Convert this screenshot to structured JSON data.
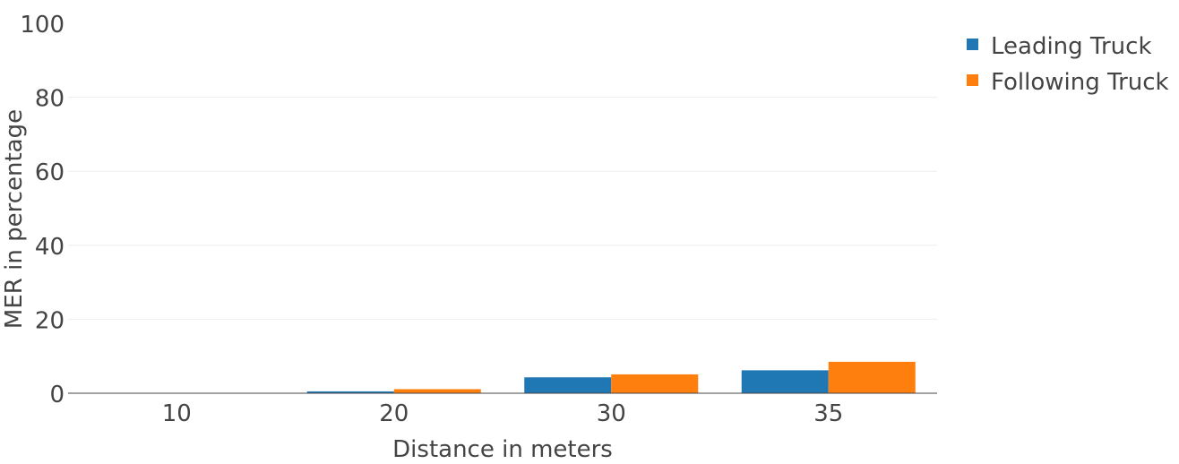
{
  "chart_data": {
    "type": "bar",
    "title": "",
    "xlabel": "Distance in meters",
    "ylabel": "MER in percentage",
    "categories": [
      "10",
      "20",
      "30",
      "35"
    ],
    "ylim": [
      0,
      100
    ],
    "yticks": [
      0,
      20,
      40,
      60,
      80,
      100
    ],
    "grid": true,
    "legend_position": "top-right",
    "series": [
      {
        "name": "Leading Truck",
        "color": "#1f77b4",
        "values": [
          0,
          0.5,
          4.3,
          6.2
        ]
      },
      {
        "name": "Following Truck",
        "color": "#ff7f0e",
        "values": [
          0,
          1.1,
          5.1,
          8.5
        ]
      }
    ]
  }
}
